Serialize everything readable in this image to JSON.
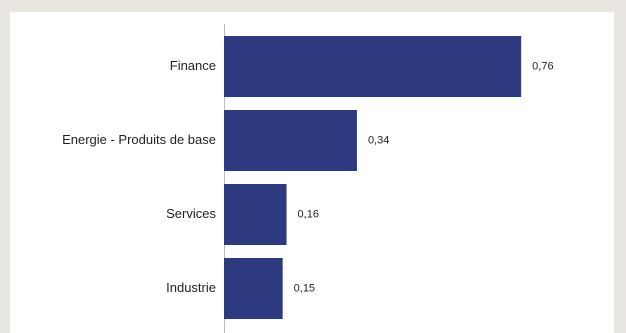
{
  "chart_data": {
    "type": "bar",
    "orientation": "horizontal",
    "categories": [
      "Finance",
      "Energie - Produits de base",
      "Services",
      "Industrie"
    ],
    "values": [
      0.76,
      0.34,
      0.16,
      0.15
    ],
    "value_labels": [
      "0,76",
      "0,34",
      "0,16",
      "0,15"
    ],
    "title": "",
    "xlabel": "",
    "ylabel": "",
    "grid": false,
    "bar_color": "#2e3a80"
  }
}
